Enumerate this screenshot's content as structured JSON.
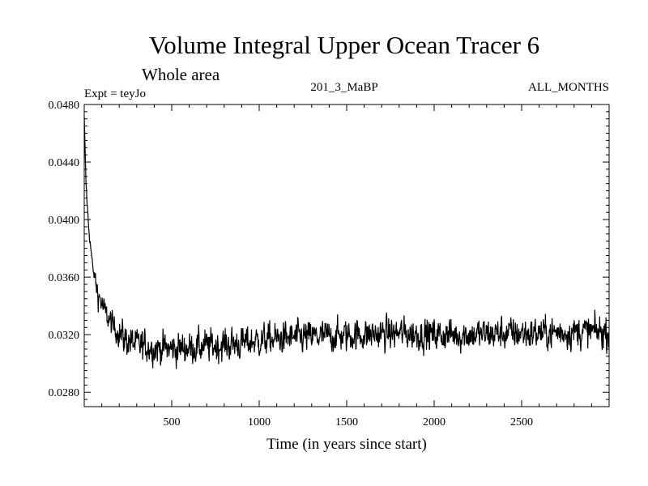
{
  "chart_data": {
    "type": "line",
    "title": "Volume Integral Upper Ocean Tracer 6",
    "subtitle": "Whole area",
    "header_left": "Expt = teyJo",
    "header_center": "201_3_MaBP",
    "header_right": "ALL_MONTHS",
    "xlabel": "Time (in years since start)",
    "ylabel": "",
    "xlim": [
      0,
      3000
    ],
    "ylim": [
      0.027,
      0.048
    ],
    "x_ticks": [
      500,
      1000,
      1500,
      2000,
      2500
    ],
    "x_tick_labels": [
      "500",
      "1000",
      "1500",
      "2000",
      "2500"
    ],
    "y_ticks": [
      0.028,
      0.032,
      0.036,
      0.04,
      0.044,
      0.048
    ],
    "y_tick_labels": [
      "0.0280",
      "0.0320",
      "0.0360",
      "0.0400",
      "0.0440",
      "0.0480"
    ],
    "grid": false,
    "series": [
      {
        "name": "Tracer 6",
        "color": "#000000",
        "description": "Noisy time series: drops from ~0.047 at year 0 to ~0.0312 by year ~300, stays ~0.0310-0.0315 to year ~900, then slowly rises to ~0.0322 by year 3000 with noise of about +/-0.0015",
        "trend_x": [
          0,
          10,
          25,
          50,
          80,
          120,
          170,
          230,
          300,
          400,
          500,
          600,
          700,
          800,
          900,
          1000,
          1200,
          1400,
          1600,
          1800,
          2000,
          2200,
          2400,
          2600,
          2800,
          3000
        ],
        "trend_y": [
          0.047,
          0.0425,
          0.0395,
          0.0365,
          0.0348,
          0.0335,
          0.0325,
          0.0317,
          0.0313,
          0.0311,
          0.031,
          0.0311,
          0.0312,
          0.0313,
          0.0314,
          0.0316,
          0.0318,
          0.0319,
          0.032,
          0.0321,
          0.032,
          0.032,
          0.0321,
          0.0321,
          0.0322,
          0.0322
        ],
        "noise_amplitude": 0.0008
      }
    ]
  }
}
